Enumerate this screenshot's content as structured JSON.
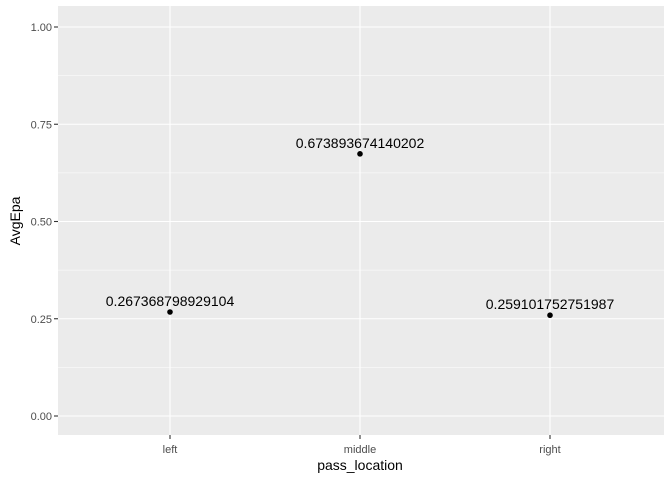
{
  "chart_data": {
    "type": "scatter",
    "categories": [
      "left",
      "middle",
      "right"
    ],
    "values": [
      0.267368798929104,
      0.673893674140202,
      0.259101752751987
    ],
    "labels": [
      "0.267368798929104",
      "0.673893674140202",
      "0.259101752751987"
    ],
    "xlabel": "pass_location",
    "ylabel": "AvgEpa",
    "ylim": [
      0,
      1
    ],
    "yticks": [
      0,
      0.25,
      0.5,
      0.75,
      1
    ],
    "ytick_labels": [
      "0.00",
      "0.25",
      "0.50",
      "0.75",
      "1.00"
    ],
    "grid": true,
    "colors": {
      "panel": "#ebebeb",
      "grid": "#ffffff",
      "point": "#000000"
    }
  }
}
